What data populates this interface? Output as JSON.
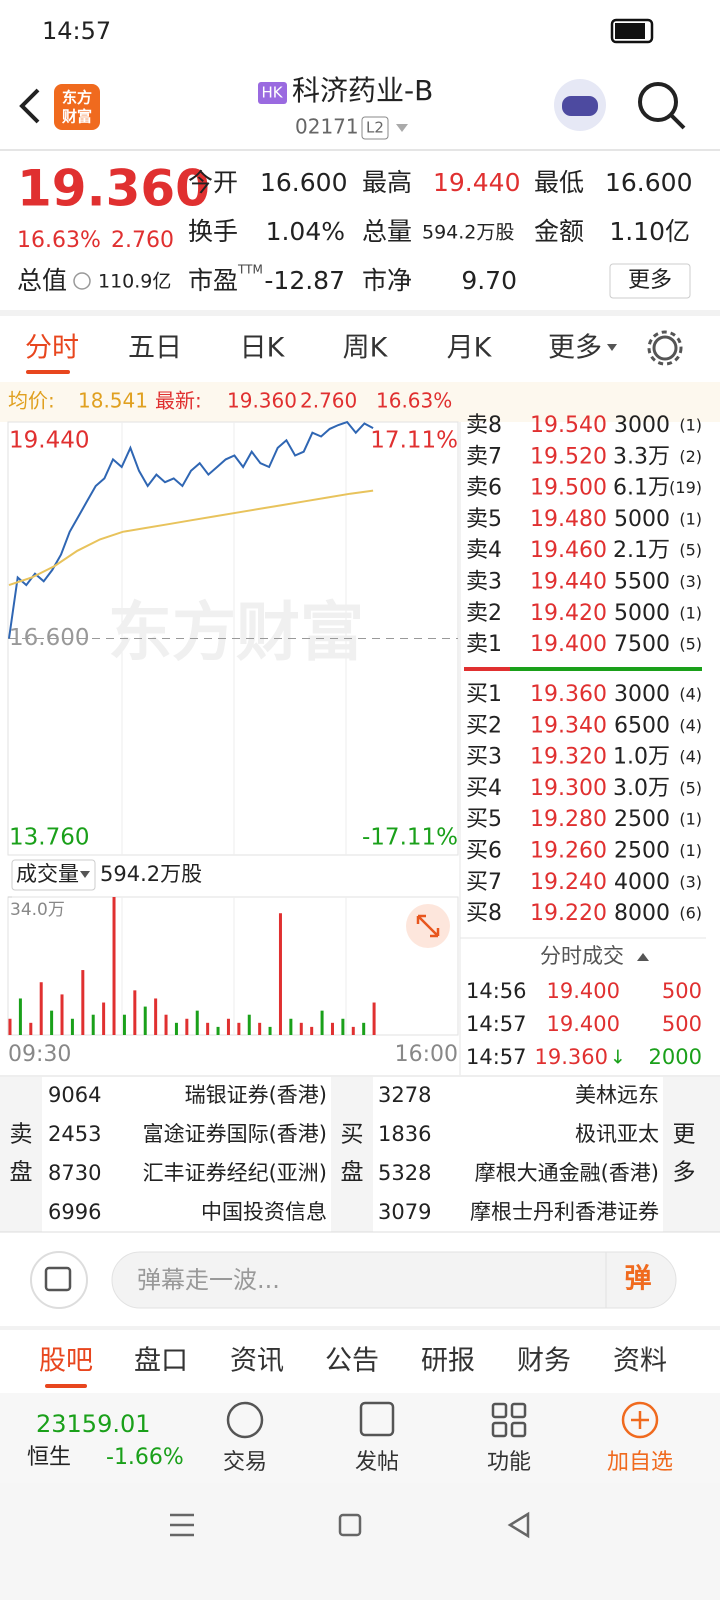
{
  "status_bar": {
    "time": "14:57"
  },
  "header": {
    "logo": [
      "东方",
      "财富"
    ],
    "market": "HK",
    "title": "科济药业-B",
    "code": "02171",
    "level": "L2"
  },
  "quote": {
    "price": "19.360",
    "change_pct": "16.63%",
    "change": "2.760",
    "fields": [
      {
        "label": "今开",
        "value": "16.600"
      },
      {
        "label": "最高",
        "value": "19.440"
      },
      {
        "label": "最低",
        "value": "16.600"
      },
      {
        "label": "换手",
        "value": "1.04%"
      },
      {
        "label": "总量",
        "value": "594.2万股"
      },
      {
        "label": "金额",
        "value": "1.10亿"
      },
      {
        "label": "总值",
        "value": "110.9亿"
      },
      {
        "label": "市盈",
        "sup": "TTM",
        "value": "-12.87"
      },
      {
        "label": "市净",
        "value": "9.70"
      }
    ],
    "more": "更多"
  },
  "tabs": [
    "分时",
    "五日",
    "日K",
    "周K",
    "月K",
    "更多"
  ],
  "summary": {
    "avg_label": "均价:",
    "avg": "18.541",
    "latest_label": "最新:",
    "latest": "19.360",
    "change": "2.760",
    "change_pct": "16.63%"
  },
  "watermark": "东方财富",
  "chart_data": [
    {
      "type": "line",
      "ylim": [
        13.76,
        19.44
      ],
      "yticks": [
        {
          "value": 19.44,
          "label": "19.440"
        },
        {
          "value": 16.6,
          "label": "16.600"
        },
        {
          "value": 13.76,
          "label": "13.760"
        }
      ],
      "y2lim": [
        -17.11,
        17.11
      ],
      "y2ticks": [
        {
          "value": 17.11,
          "label": "17.11%"
        },
        {
          "value": -17.11,
          "label": "-17.11%"
        }
      ],
      "series": [
        {
          "color": "#2f66b3",
          "values": [
            16.6,
            17.4,
            17.3,
            17.45,
            17.35,
            17.5,
            17.7,
            18.0,
            18.2,
            18.4,
            18.6,
            18.7,
            18.95,
            18.85,
            19.1,
            18.8,
            18.6,
            18.75,
            18.65,
            18.7,
            18.6,
            18.8,
            18.9,
            18.75,
            18.85,
            18.95,
            19.0,
            18.85,
            19.05,
            18.9,
            18.85,
            19.1,
            19.2,
            19.0,
            19.05,
            19.3,
            19.25,
            19.35,
            19.4,
            19.44,
            19.3,
            19.42,
            19.36
          ]
        },
        {
          "color": "#e8c35c",
          "values": [
            17.3,
            17.4,
            17.55,
            17.75,
            17.9,
            18.0,
            18.05,
            18.1,
            18.15,
            18.2,
            18.25,
            18.3,
            18.35,
            18.4,
            18.45,
            18.5,
            18.54
          ]
        }
      ]
    },
    {
      "type": "bar",
      "title": "成交量",
      "total": "594.2万股",
      "ylim": [
        0,
        34
      ],
      "yticks": [
        {
          "value": 34,
          "label": "34.0万"
        }
      ],
      "xticks": [
        "09:30",
        "16:00"
      ],
      "values": [
        4,
        9,
        3,
        13,
        6,
        10,
        4,
        16,
        5,
        8,
        34,
        5,
        11,
        7,
        9,
        5,
        3,
        4,
        6,
        3,
        2,
        4,
        3,
        5,
        3,
        2,
        30,
        4,
        3,
        2,
        6,
        3,
        4,
        2,
        3,
        8
      ],
      "colors": [
        "#e03030",
        "#1aa01a",
        "#e03030",
        "#e03030",
        "#1aa01a",
        "#e03030",
        "#1aa01a",
        "#e03030",
        "#1aa01a",
        "#e03030",
        "#e03030",
        "#1aa01a",
        "#e03030",
        "#1aa01a",
        "#e03030",
        "#e03030",
        "#1aa01a",
        "#e03030",
        "#1aa01a",
        "#e03030",
        "#1aa01a",
        "#e03030",
        "#e03030",
        "#1aa01a",
        "#e03030",
        "#1aa01a",
        "#e03030",
        "#1aa01a",
        "#e03030",
        "#e03030",
        "#1aa01a",
        "#e03030",
        "#1aa01a",
        "#e03030",
        "#1aa01a",
        "#e03030"
      ]
    }
  ],
  "order_book": {
    "asks": [
      {
        "label": "卖8",
        "price": "19.540",
        "volume": "3000",
        "count": "(1)"
      },
      {
        "label": "卖7",
        "price": "19.520",
        "volume": "3.3万",
        "count": "(2)"
      },
      {
        "label": "卖6",
        "price": "19.500",
        "volume": "6.1万",
        "count": "(19)"
      },
      {
        "label": "卖5",
        "price": "19.480",
        "volume": "5000",
        "count": "(1)"
      },
      {
        "label": "卖4",
        "price": "19.460",
        "volume": "2.1万",
        "count": "(5)"
      },
      {
        "label": "卖3",
        "price": "19.440",
        "volume": "5500",
        "count": "(3)"
      },
      {
        "label": "卖2",
        "price": "19.420",
        "volume": "5000",
        "count": "(1)"
      },
      {
        "label": "卖1",
        "price": "19.400",
        "volume": "7500",
        "count": "(5)"
      }
    ],
    "bids": [
      {
        "label": "买1",
        "price": "19.360",
        "volume": "3000",
        "count": "(4)"
      },
      {
        "label": "买2",
        "price": "19.340",
        "volume": "6500",
        "count": "(4)"
      },
      {
        "label": "买3",
        "price": "19.320",
        "volume": "1.0万",
        "count": "(4)"
      },
      {
        "label": "买4",
        "price": "19.300",
        "volume": "3.0万",
        "count": "(5)"
      },
      {
        "label": "买5",
        "price": "19.280",
        "volume": "2500",
        "count": "(1)"
      },
      {
        "label": "买6",
        "price": "19.260",
        "volume": "2500",
        "count": "(1)"
      },
      {
        "label": "买7",
        "price": "19.240",
        "volume": "4000",
        "count": "(3)"
      },
      {
        "label": "买8",
        "price": "19.220",
        "volume": "8000",
        "count": "(6)"
      }
    ]
  },
  "trades": {
    "title": "分时成交",
    "rows": [
      {
        "time": "14:56",
        "price": "19.400",
        "volume": "500",
        "color": "#e03030"
      },
      {
        "time": "14:57",
        "price": "19.400",
        "volume": "500",
        "color": "#e03030"
      },
      {
        "time": "14:57",
        "price": "19.360",
        "arrow": "↓",
        "volume": "2000",
        "color": "#1aa01a"
      }
    ]
  },
  "brokers": {
    "sell_label": [
      "卖",
      "盘"
    ],
    "buy_label": [
      "买",
      "盘"
    ],
    "more": [
      "更",
      "多"
    ],
    "sell": [
      [
        "9064",
        "瑞银证券(香港)"
      ],
      [
        "2453",
        "富途证券国际(香港)"
      ],
      [
        "8730",
        "汇丰证券经纪(亚洲)"
      ],
      [
        "6996",
        "中国投资信息"
      ]
    ],
    "buy": [
      [
        "3278",
        "美林远东"
      ],
      [
        "1836",
        "极讯亚太"
      ],
      [
        "5328",
        "摩根大通金融(香港)"
      ],
      [
        "3079",
        "摩根士丹利香港证券"
      ]
    ]
  },
  "comment": {
    "placeholder": "弹幕走一波...",
    "button": "弹"
  },
  "section_tabs": [
    "股吧",
    "盘口",
    "资讯",
    "公告",
    "研报",
    "财务",
    "资料"
  ],
  "bottom_bar": {
    "index_value": "23159.01",
    "index_name": "恒生",
    "index_change": "-1.66%",
    "actions": [
      "交易",
      "发帖",
      "功能",
      "加自选"
    ]
  }
}
